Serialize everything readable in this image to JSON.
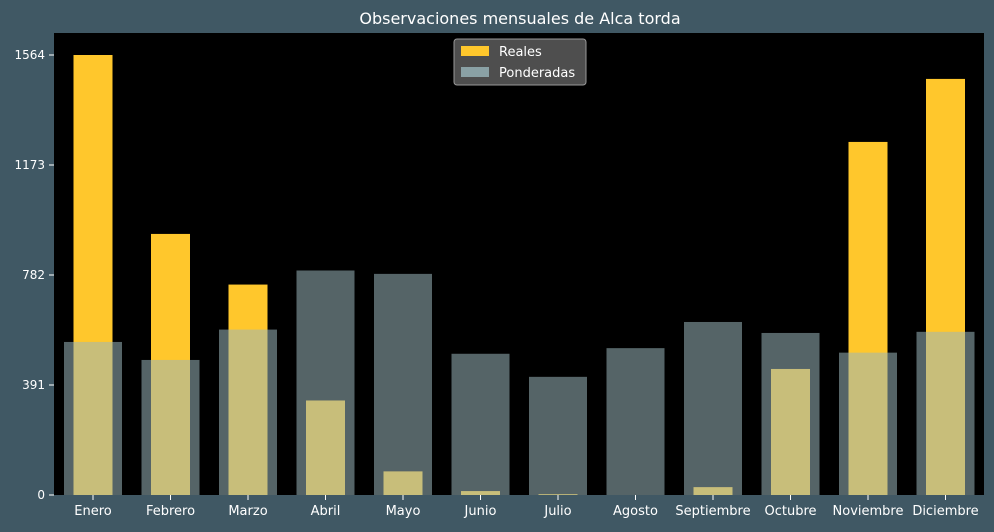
{
  "chart_data": {
    "type": "bar",
    "title": "Observaciones mensuales de Alca torda",
    "xlabel": "",
    "ylabel": "",
    "categories": [
      "Enero",
      "Febrero",
      "Marzo",
      "Abril",
      "Mayo",
      "Junio",
      "Julio",
      "Agosto",
      "Septiembre",
      "Octubre",
      "Noviembre",
      "Diciembre"
    ],
    "series": [
      {
        "name": "Reales",
        "color": "#ffc72c",
        "values": [
          1564,
          928,
          748,
          336,
          84,
          14,
          3,
          0,
          28,
          448,
          1255,
          1479
        ]
      },
      {
        "name": "Ponderadas",
        "color": "#9ab7bc",
        "values": [
          544,
          480,
          588,
          798,
          786,
          502,
          420,
          522,
          615,
          576,
          506,
          580
        ]
      }
    ],
    "yticks": [
      0,
      391,
      782,
      1173,
      1564
    ],
    "ylim": [
      0,
      1564
    ],
    "legend": "top-center",
    "grid": false,
    "colors": {
      "background": "#405864",
      "plot_background": "#000000",
      "text": "#ffffff",
      "legend_background": "#575757"
    }
  }
}
